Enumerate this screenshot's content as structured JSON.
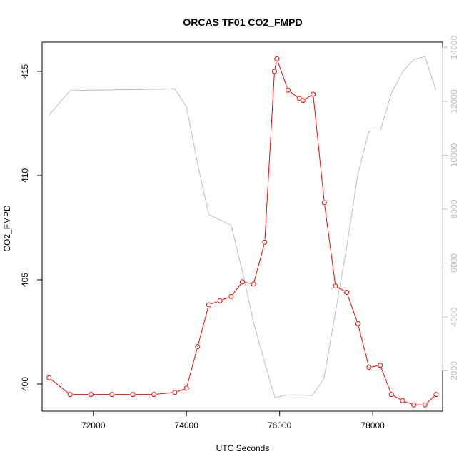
{
  "chart_data": {
    "type": "line",
    "title": "ORCAS TF01 CO2_FMPD",
    "xlabel": "UTC Seconds",
    "ylabel": "CO2_FMPD",
    "y2label": "",
    "xlim": [
      70900,
      79500
    ],
    "ylim": [
      398.7,
      416.4
    ],
    "y2lim": [
      500,
      14200
    ],
    "x_ticks": [
      72000,
      74000,
      76000,
      78000
    ],
    "y_ticks": [
      400,
      405,
      410,
      415
    ],
    "y2_ticks": [
      2000,
      4000,
      6000,
      8000,
      10000,
      12000,
      14000
    ],
    "grid": false,
    "series": [
      {
        "axis": "left",
        "color": "#ff0000",
        "marker": "open-circle",
        "points": [
          [
            71050,
            400.3
          ],
          [
            71500,
            399.5
          ],
          [
            71950,
            399.5
          ],
          [
            72400,
            399.5
          ],
          [
            72850,
            399.5
          ],
          [
            73300,
            399.5
          ],
          [
            73750,
            399.6
          ],
          [
            74000,
            399.8
          ],
          [
            74240,
            401.8
          ],
          [
            74480,
            403.8
          ],
          [
            74720,
            404.0
          ],
          [
            74960,
            404.2
          ],
          [
            75200,
            404.9
          ],
          [
            75440,
            404.8
          ],
          [
            75680,
            406.8
          ],
          [
            75890,
            415.0
          ],
          [
            75940,
            415.6
          ],
          [
            76180,
            414.1
          ],
          [
            76420,
            413.7
          ],
          [
            76500,
            413.6
          ],
          [
            76720,
            413.9
          ],
          [
            76960,
            408.7
          ],
          [
            77200,
            404.7
          ],
          [
            77440,
            404.4
          ],
          [
            77680,
            402.9
          ],
          [
            77920,
            400.8
          ],
          [
            78160,
            400.9
          ],
          [
            78400,
            399.5
          ],
          [
            78640,
            399.2
          ],
          [
            78880,
            399.0
          ],
          [
            79120,
            399.0
          ],
          [
            79360,
            399.5
          ]
        ]
      },
      {
        "axis": "right",
        "color": "#bebebe",
        "marker": "none",
        "points": [
          [
            71050,
            11500
          ],
          [
            71500,
            12400
          ],
          [
            72000,
            12420
          ],
          [
            72500,
            12430
          ],
          [
            73000,
            12440
          ],
          [
            73500,
            12460
          ],
          [
            73750,
            12470
          ],
          [
            74000,
            11800
          ],
          [
            74250,
            9600
          ],
          [
            74480,
            7800
          ],
          [
            74720,
            7600
          ],
          [
            74960,
            7400
          ],
          [
            75200,
            5700
          ],
          [
            75440,
            3800
          ],
          [
            75680,
            2300
          ],
          [
            75900,
            1000
          ],
          [
            76150,
            1100
          ],
          [
            76450,
            1100
          ],
          [
            76700,
            1080
          ],
          [
            76950,
            1700
          ],
          [
            77200,
            4200
          ],
          [
            77450,
            6700
          ],
          [
            77680,
            9300
          ],
          [
            77920,
            10900
          ],
          [
            78160,
            10900
          ],
          [
            78400,
            12300
          ],
          [
            78640,
            13100
          ],
          [
            78880,
            13560
          ],
          [
            79120,
            13660
          ],
          [
            79360,
            12400
          ]
        ]
      }
    ]
  }
}
